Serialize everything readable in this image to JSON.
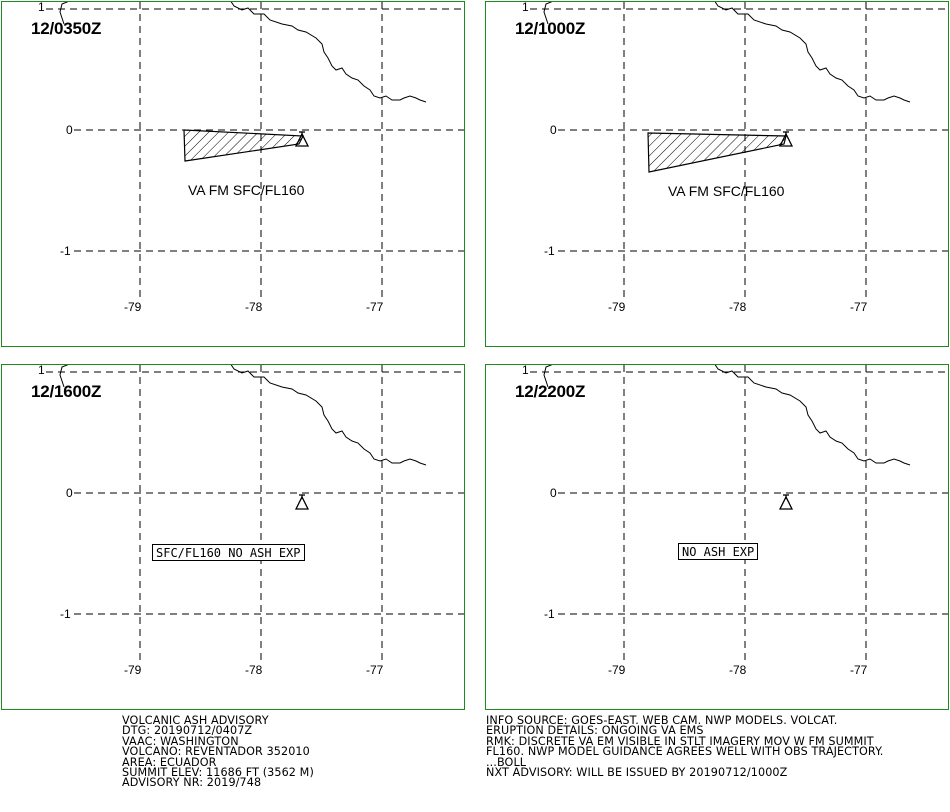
{
  "panels": [
    {
      "time": "12/0350Z",
      "va_label": "VA FM SFC/FL160",
      "boxed_label": "",
      "has_polygon": true,
      "lat_labels": [
        "1",
        "0",
        "-1"
      ],
      "lon_labels": [
        "-79",
        "-78",
        "-77"
      ]
    },
    {
      "time": "12/1000Z",
      "va_label": "VA FM SFC/FL160",
      "boxed_label": "",
      "has_polygon": true,
      "lat_labels": [
        "1",
        "0",
        "-1"
      ],
      "lon_labels": [
        "-79",
        "-78",
        "-77"
      ]
    },
    {
      "time": "12/1600Z",
      "va_label": "",
      "boxed_label": "SFC/FL160 NO ASH EXP",
      "has_polygon": false,
      "lat_labels": [
        "1",
        "0",
        "-1"
      ],
      "lon_labels": [
        "-79",
        "-78",
        "-77"
      ]
    },
    {
      "time": "12/2200Z",
      "va_label": "",
      "boxed_label": "NO ASH EXP",
      "has_polygon": false,
      "lat_labels": [
        "1",
        "0",
        "-1"
      ],
      "lon_labels": [
        "-79",
        "-78",
        "-77"
      ]
    }
  ],
  "advisory": {
    "lines": [
      "VOLCANIC ASH ADVISORY",
      "DTG: 20190712/0407Z",
      "VAAC: WASHINGTON",
      "VOLCANO: REVENTADOR 352010",
      "AREA: ECUADOR",
      "SUMMIT ELEV: 11686 FT (3562 M)",
      "ADVISORY NR: 2019/748"
    ]
  },
  "info": {
    "lines": [
      "INFO SOURCE: GOES-EAST. WEB CAM. NWP MODELS. VOLCAT.",
      "ERUPTION DETAILS: ONGOING VA EMS",
      "RMK: DISCRETE VA EM VISIBLE IN STLT IMAGERY MOV W FM SUMMIT",
      "FL160. NWP MODEL GUIDANCE AGREES WELL WITH OBS TRAJECTORY.",
      "...BOLL",
      "NXT ADVISORY: WILL BE ISSUED BY 20190712/1000Z"
    ]
  },
  "colors": {
    "panel_border": "#1e8a1e",
    "ink": "#000000"
  }
}
